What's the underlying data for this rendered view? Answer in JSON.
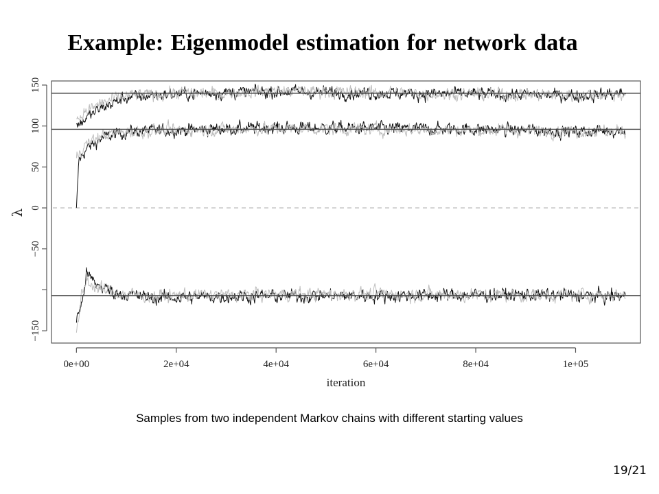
{
  "slide": {
    "title": "Example: Eigenmodel estimation for network data",
    "caption": "Samples from two independent Markov chains with different starting values",
    "page_number": "19/21"
  },
  "chart_data": {
    "type": "line",
    "title": "",
    "xlabel": "iteration",
    "ylabel": "λ",
    "xlim": [
      -5000,
      113000
    ],
    "ylim": [
      -165,
      155
    ],
    "x_ticks": [
      0,
      20000,
      40000,
      60000,
      80000,
      100000
    ],
    "x_tick_labels": [
      "0e+00",
      "2e+04",
      "4e+04",
      "6e+04",
      "8e+04",
      "1e+05"
    ],
    "y_ticks": [
      -150,
      -100,
      -50,
      0,
      50,
      100,
      150
    ],
    "y_tick_labels": [
      "−150",
      "",
      "−50",
      "0",
      "50",
      "100",
      "150"
    ],
    "hlines": [
      140,
      96,
      -107
    ],
    "reference_line": 0,
    "grid": false,
    "colors": {
      "chain1": "#111111",
      "chain2": "#bdbdbd",
      "hline": "#444444",
      "zero_line": "#bbbbbb",
      "axis": "#555555"
    },
    "series": [
      {
        "chain": 1,
        "component": "lambda1",
        "x": [
          0,
          2000,
          5000,
          10000,
          20000,
          30000,
          40000,
          60000,
          80000,
          100000,
          110000
        ],
        "y": [
          100,
          110,
          122,
          135,
          139,
          141,
          142,
          140,
          139,
          137,
          140
        ]
      },
      {
        "chain": 1,
        "component": "lambda2",
        "x": [
          0,
          500,
          2000,
          5000,
          10000,
          20000,
          40000,
          60000,
          80000,
          100000,
          110000
        ],
        "y": [
          -3,
          58,
          72,
          85,
          93,
          95,
          98,
          97,
          96,
          93,
          95
        ]
      },
      {
        "chain": 1,
        "component": "lambda3",
        "x": [
          0,
          1000,
          2000,
          4000,
          8000,
          15000,
          30000,
          60000,
          90000,
          110000
        ],
        "y": [
          -135,
          -120,
          -80,
          -94,
          -104,
          -110,
          -108,
          -107,
          -106,
          -108
        ]
      },
      {
        "chain": 2,
        "component": "lambda1",
        "x": [
          0,
          2000,
          5000,
          10000,
          20000,
          30000,
          40000,
          60000,
          80000,
          100000,
          110000
        ],
        "y": [
          108,
          118,
          128,
          137,
          140,
          140,
          143,
          141,
          139,
          138,
          139
        ]
      },
      {
        "chain": 2,
        "component": "lambda2",
        "x": [
          0,
          500,
          2000,
          5000,
          10000,
          20000,
          40000,
          60000,
          80000,
          100000,
          110000
        ],
        "y": [
          62,
          68,
          78,
          88,
          93,
          95,
          97,
          96,
          95,
          94,
          94
        ]
      },
      {
        "chain": 2,
        "component": "lambda3",
        "x": [
          0,
          1000,
          2000,
          4000,
          8000,
          15000,
          30000,
          60000,
          90000,
          110000
        ],
        "y": [
          -155,
          -110,
          -88,
          -98,
          -104,
          -108,
          -106,
          -105,
          -107,
          -106
        ]
      }
    ]
  }
}
